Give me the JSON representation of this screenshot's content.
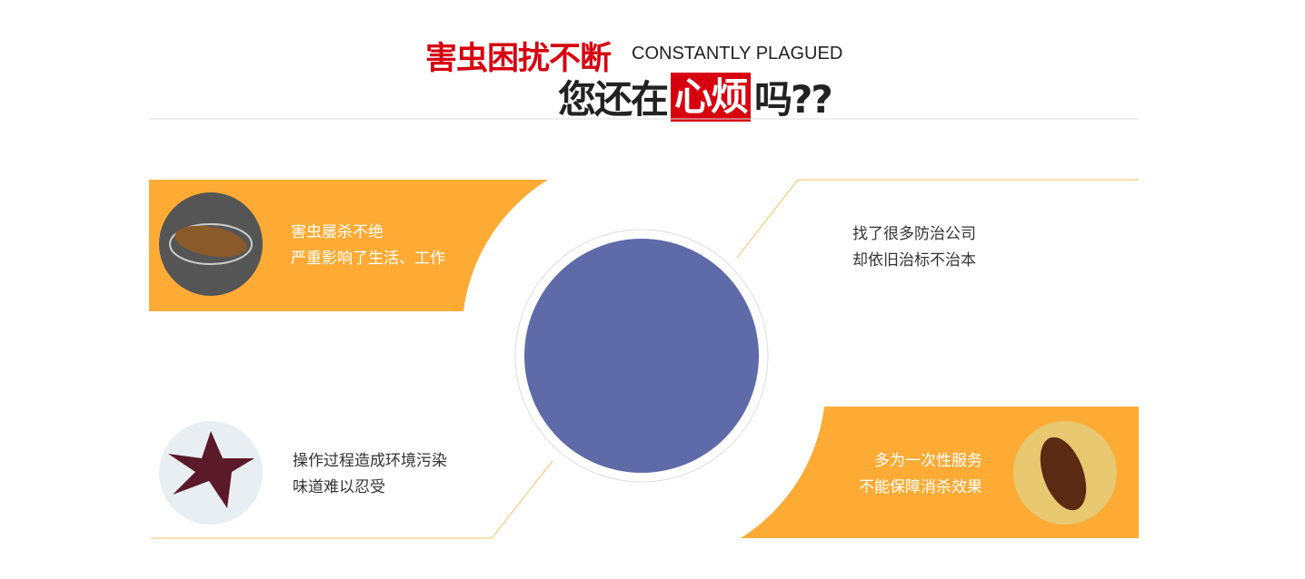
{
  "header": {
    "title_red": "害虫困扰不断",
    "title_en": "CONSTANTLY PLAGUED",
    "sub_before": "您还在",
    "sub_highlight": "心烦",
    "sub_after": "吗??"
  },
  "colors": {
    "accent": "#fdab35",
    "red": "#d7000f",
    "center": "#5f6aa8"
  },
  "problems": [
    {
      "line1": "害虫屡杀不绝",
      "line2": "严重影响了生活、工作"
    },
    {
      "line1": "找了很多防治公司",
      "line2": "却依旧治标不治本"
    },
    {
      "line1": "操作过程造成环境污染",
      "line2": "味道难以忍受"
    },
    {
      "line1": "多为一次性服务",
      "line2": "不能保障消杀效果"
    }
  ]
}
